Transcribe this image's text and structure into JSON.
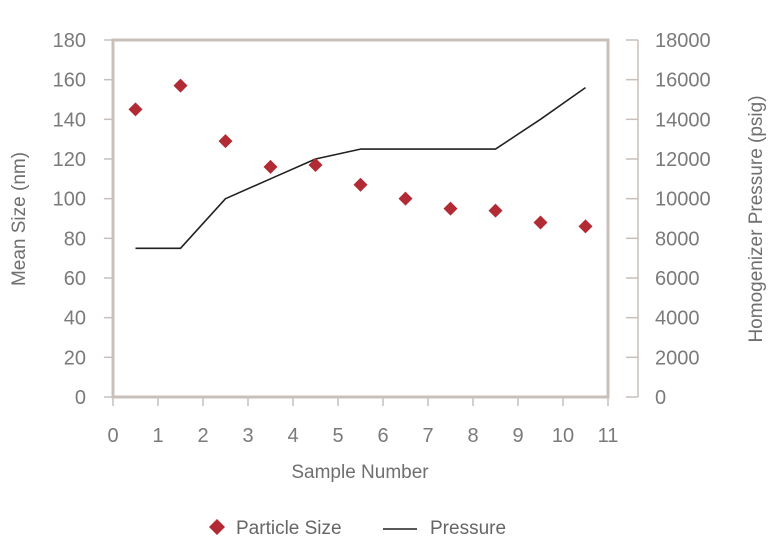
{
  "chart_data": {
    "type": "scatter+line",
    "xlabel": "Sample Number",
    "ylabel_left": "Mean Size (nm)",
    "ylabel_right": "Homogenizer Pressure (psig)",
    "xlim": [
      0,
      11
    ],
    "ylim_left": [
      0,
      180
    ],
    "ylim_right": [
      0,
      18000
    ],
    "x_ticks": [
      "0",
      "1",
      "2",
      "3",
      "4",
      "5",
      "6",
      "7",
      "8",
      "9",
      "10",
      "11"
    ],
    "y_left_ticks": [
      "0",
      "20",
      "40",
      "60",
      "80",
      "100",
      "120",
      "140",
      "160",
      "180"
    ],
    "y_right_ticks": [
      "0",
      "2000",
      "4000",
      "6000",
      "8000",
      "10000",
      "12000",
      "14000",
      "16000",
      "18000"
    ],
    "grid": false,
    "legend_position": "bottom",
    "series": [
      {
        "name": "Particle Size",
        "kind": "scatter",
        "axis": "left",
        "marker": "diamond",
        "color": "#b22a33",
        "x": [
          0.5,
          1.5,
          2.5,
          3.5,
          4.5,
          5.5,
          6.5,
          7.5,
          8.5,
          9.5,
          10.5
        ],
        "y": [
          145,
          157,
          129,
          116,
          117,
          107,
          100,
          95,
          94,
          88,
          86
        ]
      },
      {
        "name": "Pressure",
        "kind": "line",
        "axis": "right",
        "color": "#222222",
        "x": [
          0.5,
          1.5,
          2.5,
          3.5,
          4.5,
          5.5,
          6.5,
          7.5,
          8.5,
          9.5,
          10.5
        ],
        "y": [
          7500,
          7500,
          10000,
          11000,
          12000,
          12500,
          12500,
          12500,
          12500,
          14000,
          15600
        ]
      }
    ]
  }
}
